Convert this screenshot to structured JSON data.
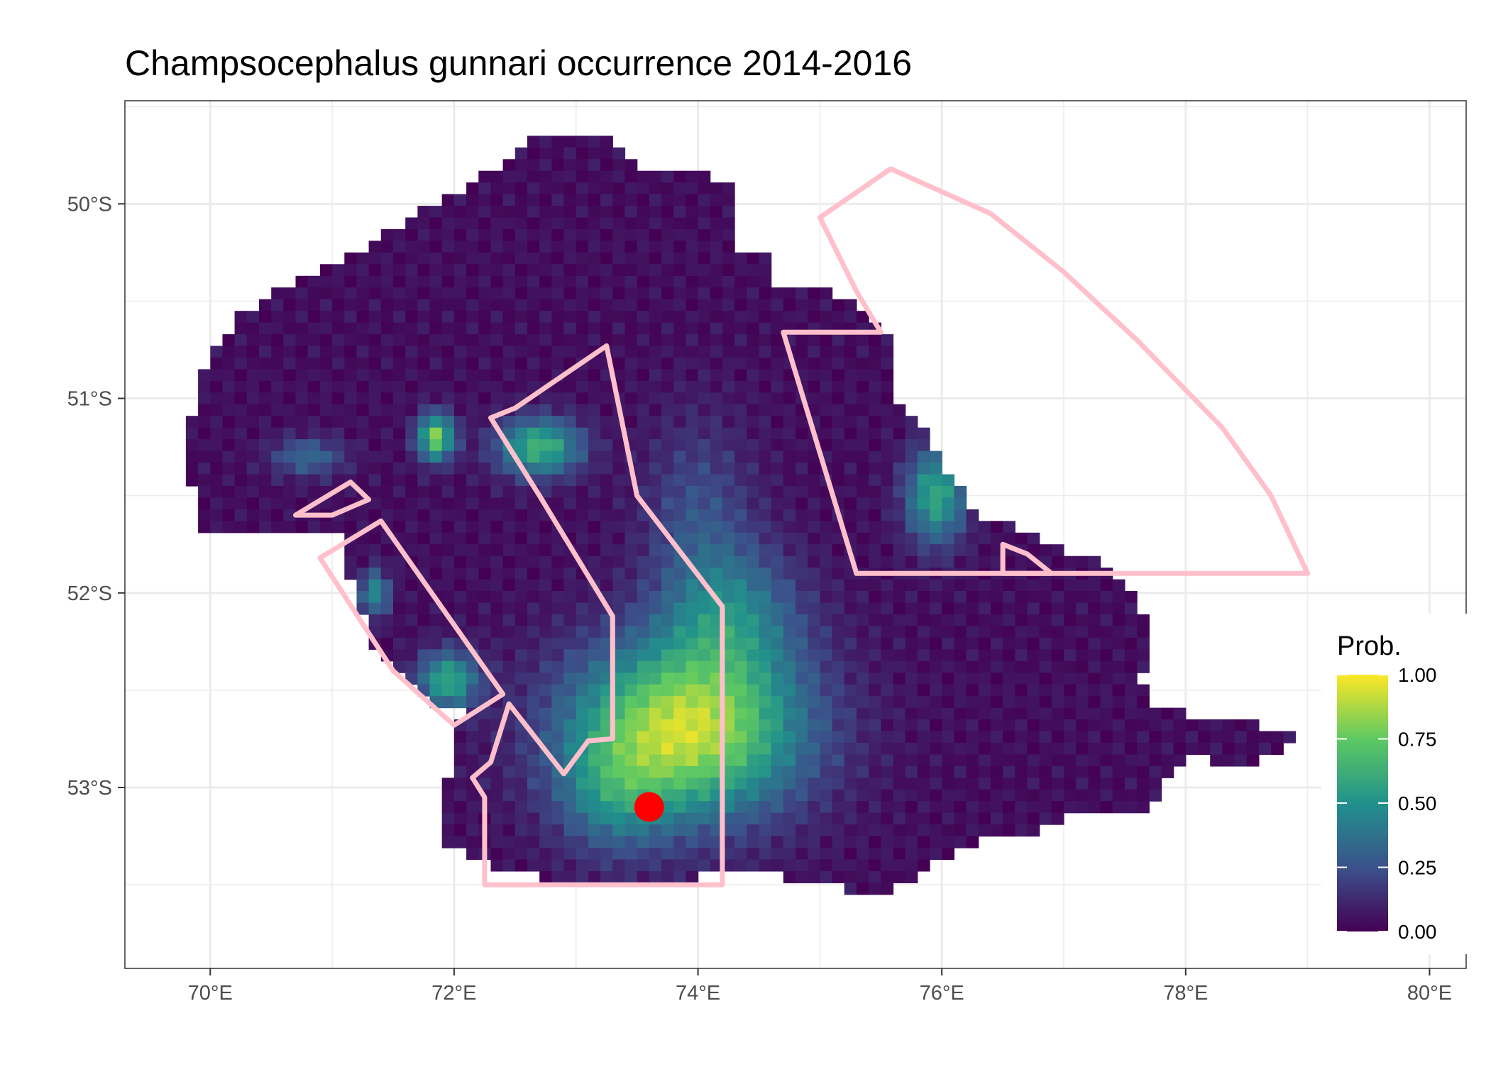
{
  "title": "Champsocephalus gunnari  occurrence 2014-2016",
  "map": {
    "x_ticks": [
      {
        "value": 70,
        "label": "70°E"
      },
      {
        "value": 72,
        "label": "72°E"
      },
      {
        "value": 74,
        "label": "74°E"
      },
      {
        "value": 76,
        "label": "76°E"
      },
      {
        "value": 78,
        "label": "78°E"
      },
      {
        "value": 80,
        "label": "80°E"
      }
    ],
    "y_ticks": [
      {
        "value": -50,
        "label": "50°S"
      },
      {
        "value": -51,
        "label": "51°S"
      },
      {
        "value": -52,
        "label": "52°S"
      },
      {
        "value": -53,
        "label": "53°S"
      }
    ],
    "xlim": [
      69.3,
      80.3
    ],
    "ylim": [
      -53.93,
      -49.47
    ],
    "grid": true,
    "colors": {
      "zone_outline": "#ffc0cb",
      "marker": "#ff0000",
      "grid": "#ebebeb",
      "panel_border": "#333333"
    },
    "marker_point": {
      "lon": 73.6,
      "lat": -53.1
    },
    "zones": [
      {
        "name": "northeast-sector",
        "points": [
          [
            75.0,
            -50.07
          ],
          [
            75.58,
            -49.82
          ],
          [
            76.4,
            -50.05
          ],
          [
            77.0,
            -50.35
          ],
          [
            77.6,
            -50.7
          ],
          [
            78.3,
            -51.15
          ],
          [
            78.7,
            -51.5
          ],
          [
            79.0,
            -51.9
          ],
          [
            76.6,
            -51.9
          ],
          [
            75.3,
            -51.9
          ],
          [
            74.7,
            -50.66
          ],
          [
            75.5,
            -50.66
          ],
          [
            75.3,
            -50.45
          ]
        ]
      },
      {
        "name": "central-polygon",
        "points": [
          [
            72.3,
            -51.1
          ],
          [
            72.5,
            -51.05
          ],
          [
            73.25,
            -50.73
          ],
          [
            73.5,
            -51.5
          ],
          [
            74.2,
            -52.07
          ],
          [
            74.2,
            -53.5
          ],
          [
            72.25,
            -53.5
          ],
          [
            72.25,
            -53.05
          ],
          [
            72.15,
            -52.95
          ],
          [
            72.3,
            -52.87
          ],
          [
            72.45,
            -52.57
          ],
          [
            72.9,
            -52.93
          ],
          [
            73.1,
            -52.76
          ],
          [
            73.3,
            -52.75
          ],
          [
            73.3,
            -52.12
          ],
          [
            72.7,
            -51.5
          ]
        ]
      },
      {
        "name": "west-strip",
        "points": [
          [
            70.9,
            -51.82
          ],
          [
            71.4,
            -51.63
          ],
          [
            72.4,
            -52.52
          ],
          [
            72.0,
            -52.68
          ],
          [
            71.5,
            -52.4
          ]
        ]
      },
      {
        "name": "west-triangle",
        "points": [
          [
            70.7,
            -51.6
          ],
          [
            71.15,
            -51.43
          ],
          [
            71.3,
            -51.52
          ],
          [
            71.0,
            -51.6
          ]
        ]
      },
      {
        "name": "east-tab",
        "points": [
          [
            76.5,
            -51.9
          ],
          [
            76.5,
            -51.75
          ],
          [
            76.7,
            -51.8
          ],
          [
            76.9,
            -51.9
          ]
        ]
      }
    ]
  },
  "legend": {
    "title": "Prob.",
    "labels": [
      "1.00",
      "0.75",
      "0.50",
      "0.25",
      "0.00"
    ],
    "scale": [
      "#440154",
      "#3b528b",
      "#21918c",
      "#5ec962",
      "#fde725"
    ],
    "range": [
      0,
      1
    ]
  }
}
